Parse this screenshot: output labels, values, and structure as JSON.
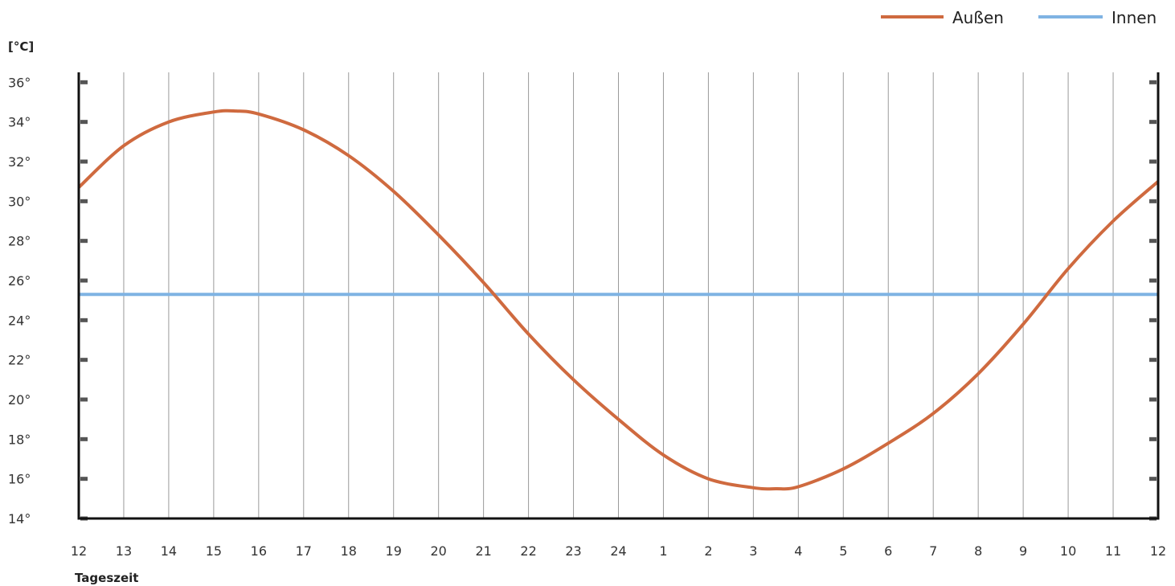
{
  "chart_data": {
    "type": "line",
    "ylabel": "[°C]",
    "xlabel": "Tageszeit",
    "ylim": [
      14,
      36.5
    ],
    "y_ticks": [
      "14°",
      "16°",
      "18°",
      "20°",
      "22°",
      "24°",
      "26°",
      "28°",
      "30°",
      "32°",
      "34°",
      "36°"
    ],
    "y_tick_values": [
      14,
      16,
      18,
      20,
      22,
      24,
      26,
      28,
      30,
      32,
      34,
      36
    ],
    "x_ticks": [
      "12",
      "13",
      "14",
      "15",
      "16",
      "17",
      "18",
      "19",
      "20",
      "21",
      "22",
      "23",
      "24",
      "1",
      "2",
      "3",
      "4",
      "5",
      "6",
      "7",
      "8",
      "9",
      "10",
      "11",
      "12"
    ],
    "grid": "vertical",
    "legend_position": "top-right",
    "series": [
      {
        "name": "Außen",
        "color": "#cf6a3f",
        "x": [
          0,
          1,
          2,
          3,
          3.5,
          4,
          5,
          6,
          7,
          8,
          9,
          10,
          11,
          12,
          13,
          14,
          15,
          15.5,
          16,
          17,
          18,
          19,
          20,
          21,
          22,
          23,
          24
        ],
        "values": [
          30.7,
          32.8,
          34.0,
          34.5,
          34.55,
          34.4,
          33.6,
          32.3,
          30.5,
          28.3,
          25.9,
          23.3,
          21.0,
          19.0,
          17.2,
          16.0,
          15.55,
          15.5,
          15.6,
          16.5,
          17.8,
          19.3,
          21.3,
          23.8,
          26.6,
          29.0,
          31.0
        ]
      },
      {
        "name": "Innen",
        "color": "#7fb3e3",
        "x": [
          0,
          24
        ],
        "values": [
          25.3,
          25.3
        ]
      }
    ]
  }
}
